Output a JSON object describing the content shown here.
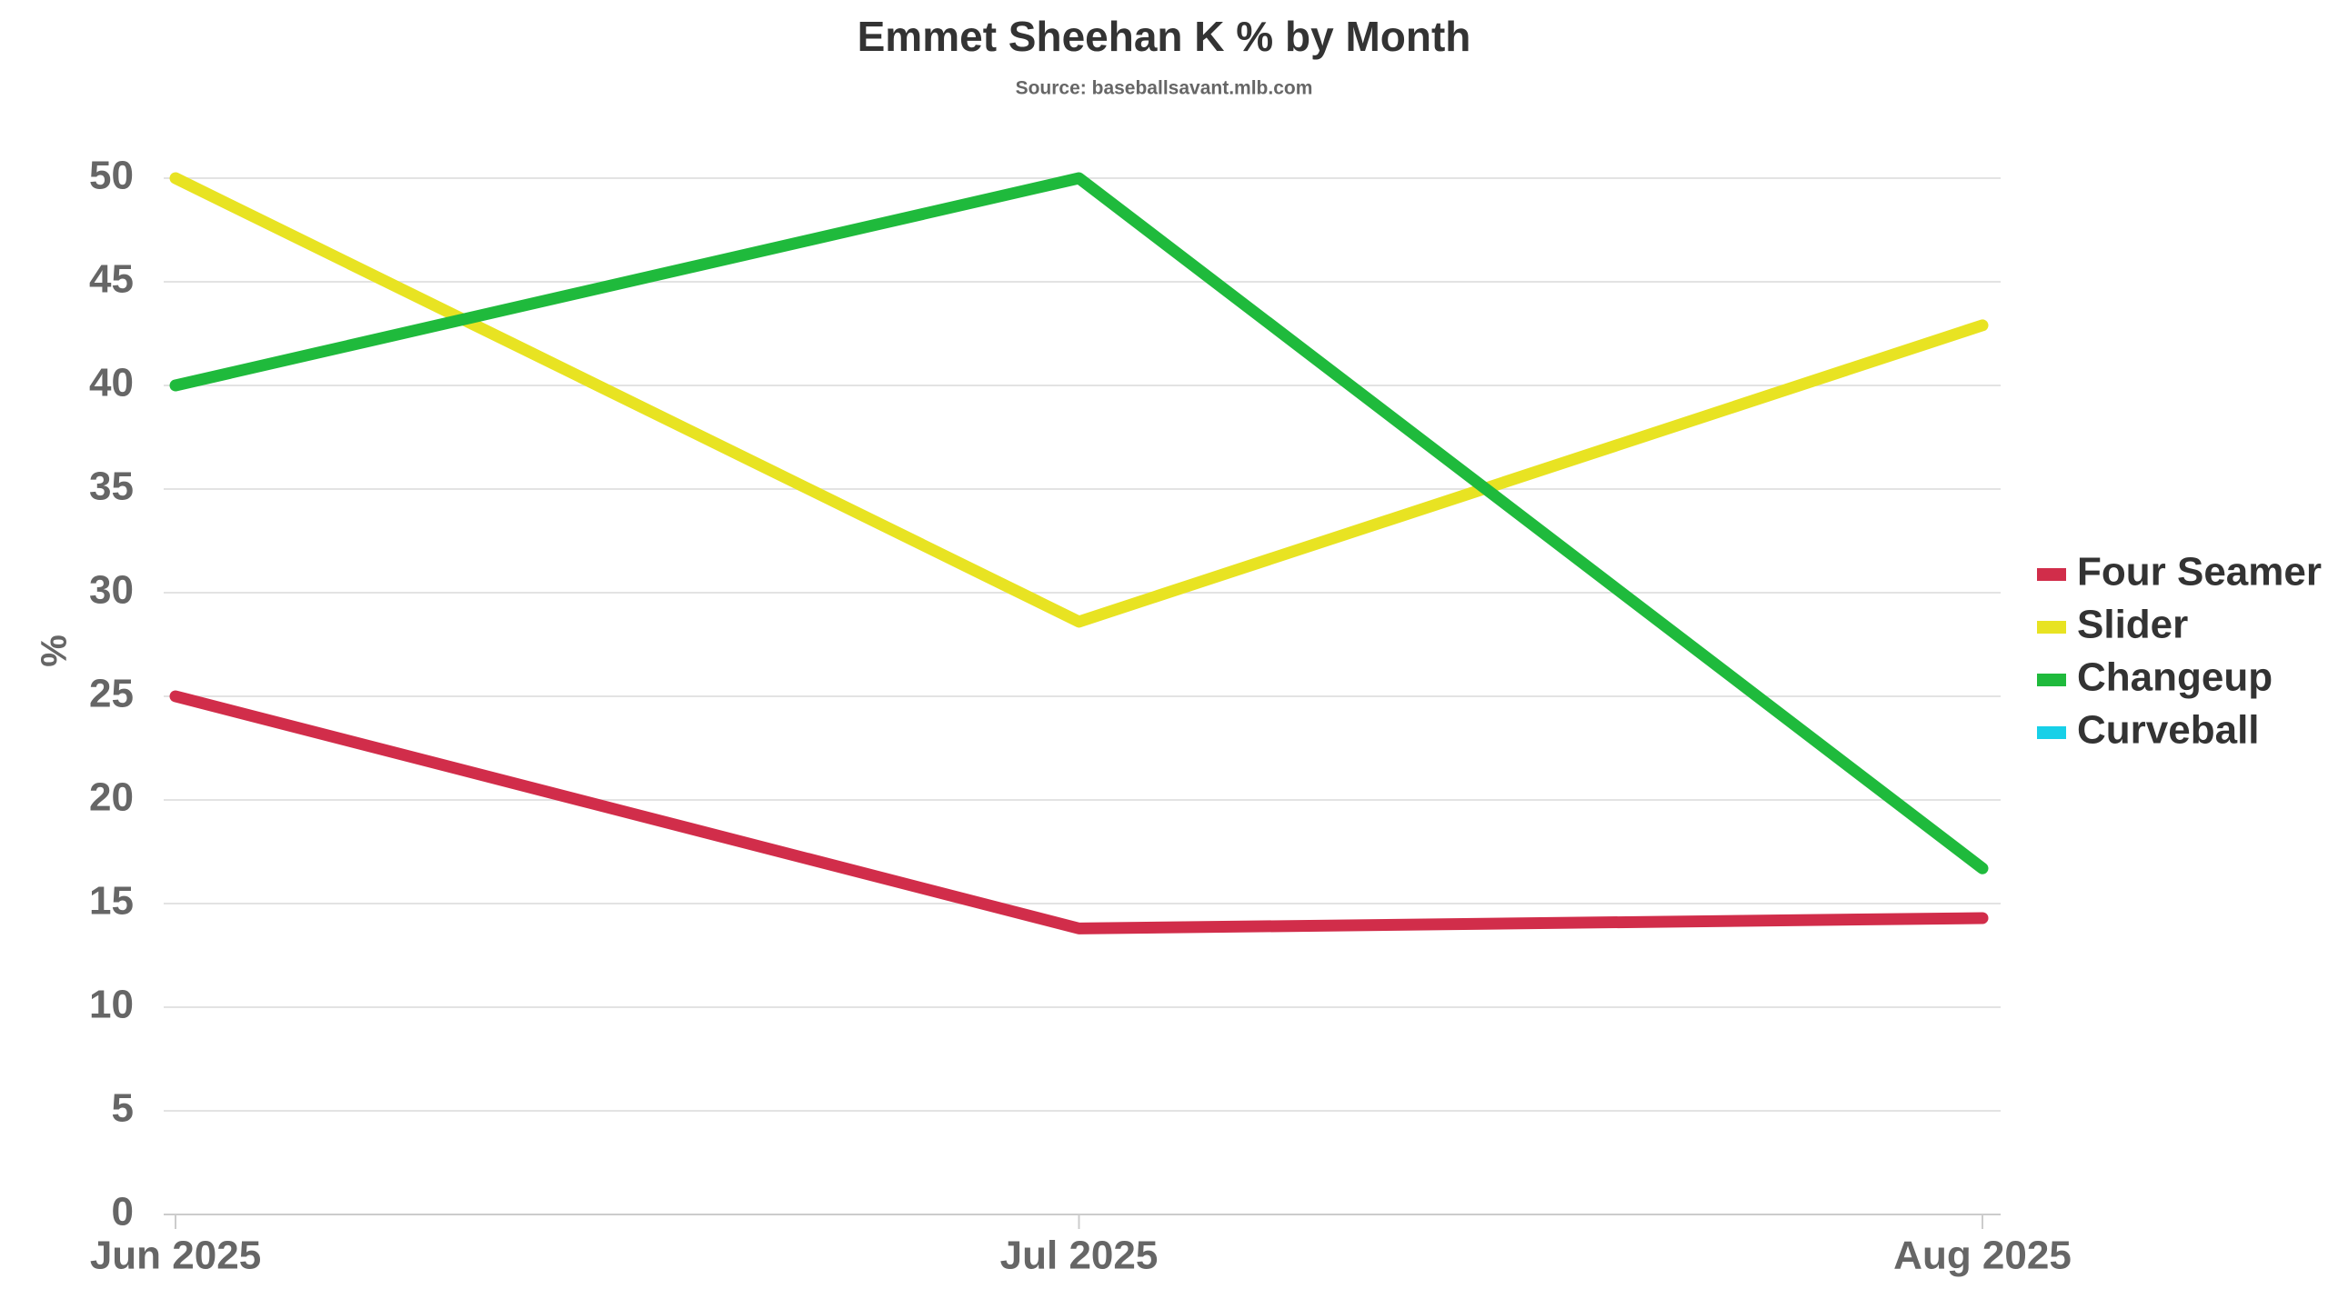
{
  "chart_data": {
    "type": "line",
    "title": "Emmet Sheehan K % by Month",
    "subtitle": "Source: baseballsavant.mlb.com",
    "y_label": "%",
    "categories": [
      "Jun 2025",
      "Jul 2025",
      "Aug 2025"
    ],
    "series": [
      {
        "name": "Four Seamer",
        "color": "#d12d4a",
        "values": [
          25,
          13.8,
          14.3
        ]
      },
      {
        "name": "Slider",
        "color": "#e8e322",
        "values": [
          50,
          28.6,
          42.9
        ]
      },
      {
        "name": "Changeup",
        "color": "#1fba3c",
        "values": [
          40,
          50,
          16.7
        ]
      },
      {
        "name": "Curveball",
        "color": "#17d0e8",
        "values": [
          null,
          null,
          null
        ]
      }
    ],
    "ylim": [
      0,
      50
    ],
    "yticks": [
      0,
      5,
      10,
      15,
      20,
      25,
      30,
      35,
      40,
      45,
      50
    ],
    "grid": true,
    "legend": "right"
  }
}
